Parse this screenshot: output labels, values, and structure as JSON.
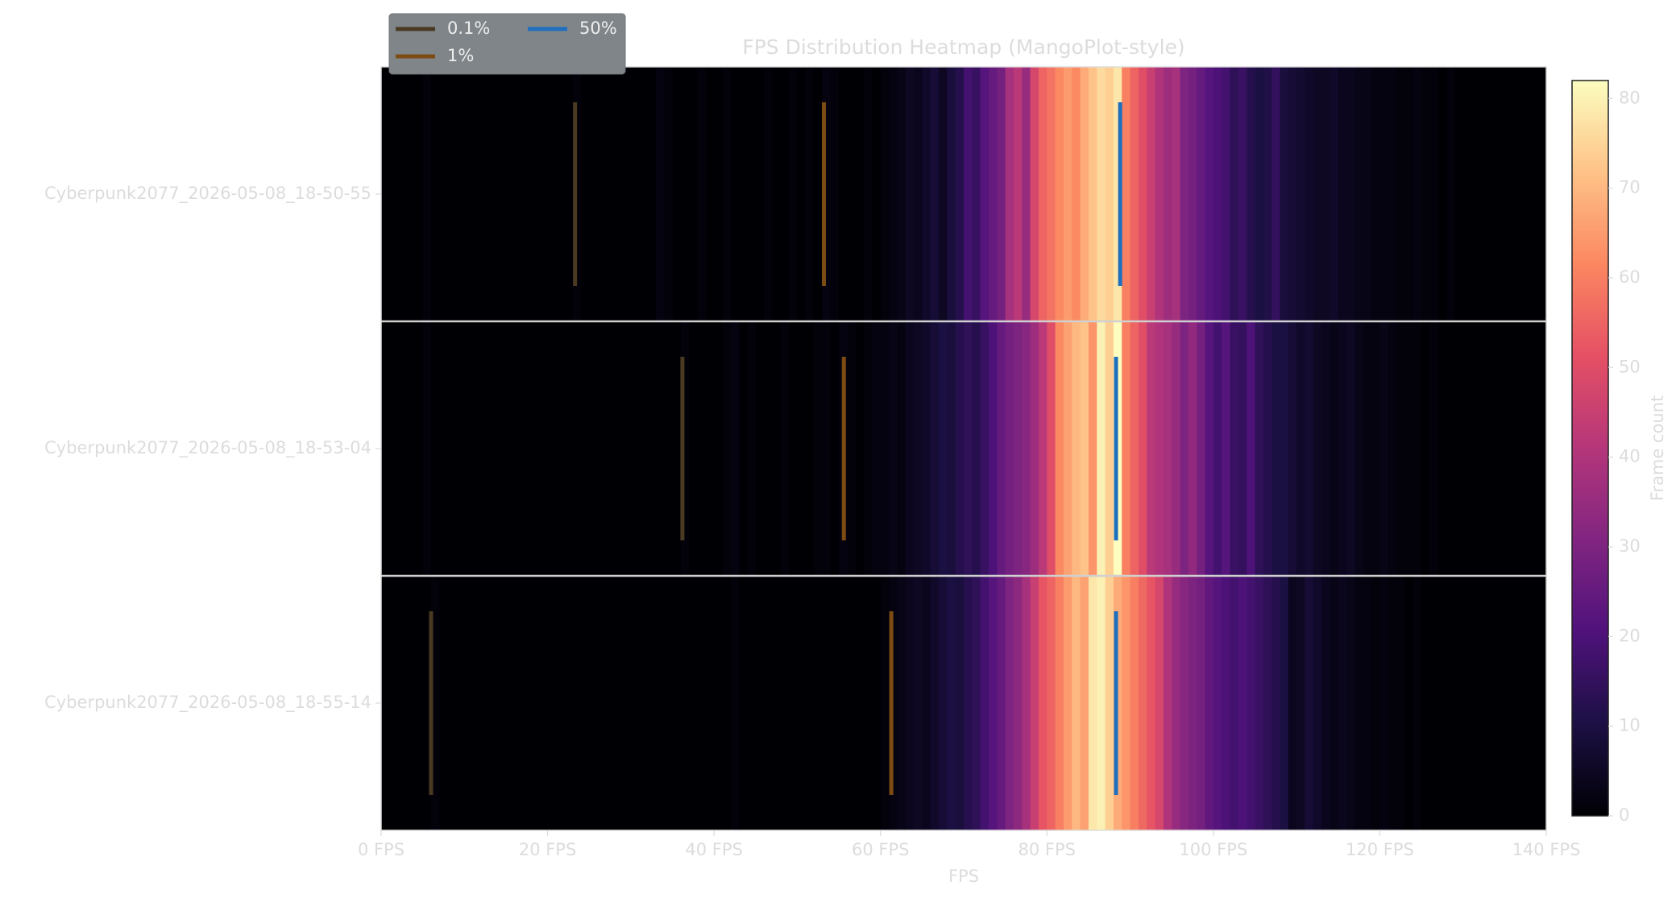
{
  "chart_data": {
    "type": "heatmap",
    "title": "FPS Distribution Heatmap (MangoPlot-style)",
    "xlabel": "FPS",
    "colormap": "magma",
    "xlim": [
      0,
      140
    ],
    "xticks": [
      {
        "value": 0,
        "label": "0 FPS"
      },
      {
        "value": 20,
        "label": "20 FPS"
      },
      {
        "value": 40,
        "label": "40 FPS"
      },
      {
        "value": 60,
        "label": "60 FPS"
      },
      {
        "value": 80,
        "label": "80 FPS"
      },
      {
        "value": 100,
        "label": "100 FPS"
      },
      {
        "value": 120,
        "label": "120 FPS"
      },
      {
        "value": 140,
        "label": "140 FPS"
      }
    ],
    "rows": [
      {
        "name": "Cyberpunk2077_2026-05-08_18-50-55",
        "values": [
          0,
          0,
          0,
          0,
          0,
          1,
          0,
          0,
          0,
          0,
          0,
          0,
          0,
          0,
          0,
          0,
          0,
          0,
          0,
          0,
          0,
          0,
          0,
          1,
          0,
          0,
          0,
          0,
          0,
          0,
          0,
          0,
          0,
          2,
          1,
          0,
          0,
          0,
          1,
          0,
          0,
          1,
          0,
          0,
          0,
          0,
          1,
          0,
          0,
          1,
          0,
          1,
          0,
          2,
          1,
          0,
          0,
          0,
          1,
          0,
          1,
          2,
          3,
          5,
          4,
          6,
          8,
          5,
          9,
          12,
          18,
          16,
          22,
          25,
          28,
          38,
          42,
          35,
          48,
          55,
          58,
          62,
          65,
          62,
          68,
          72,
          76,
          74,
          78,
          60,
          55,
          50,
          45,
          40,
          36,
          38,
          30,
          28,
          25,
          22,
          20,
          18,
          14,
          16,
          12,
          10,
          11,
          15,
          9,
          8,
          7,
          6,
          5,
          5,
          6,
          4,
          4,
          3,
          3,
          2,
          2,
          2,
          1,
          1,
          2,
          1,
          1,
          0,
          1,
          0,
          0,
          0,
          0,
          0,
          0,
          0,
          0,
          0,
          0,
          0
        ]
      },
      {
        "name": "Cyberpunk2077_2026-05-08_18-53-04",
        "values": [
          0,
          0,
          0,
          0,
          0,
          1,
          0,
          0,
          0,
          0,
          0,
          0,
          0,
          0,
          0,
          0,
          0,
          0,
          0,
          0,
          0,
          0,
          0,
          0,
          0,
          0,
          0,
          0,
          0,
          0,
          0,
          0,
          0,
          0,
          0,
          0,
          1,
          0,
          0,
          0,
          0,
          1,
          2,
          0,
          1,
          0,
          0,
          0,
          1,
          0,
          0,
          0,
          1,
          1,
          0,
          2,
          1,
          0,
          1,
          2,
          2,
          3,
          2,
          4,
          5,
          6,
          8,
          10,
          9,
          12,
          14,
          12,
          16,
          20,
          25,
          28,
          30,
          32,
          36,
          42,
          50,
          62,
          66,
          70,
          72,
          64,
          80,
          74,
          82,
          60,
          55,
          50,
          42,
          40,
          38,
          35,
          30,
          34,
          28,
          22,
          18,
          22,
          16,
          15,
          20,
          14,
          12,
          10,
          10,
          8,
          6,
          7,
          5,
          4,
          3,
          4,
          5,
          3,
          2,
          2,
          3,
          2,
          1,
          1,
          1,
          0,
          1,
          0,
          0,
          0,
          0,
          0,
          0,
          0,
          0,
          0,
          0,
          0,
          0,
          0
        ]
      },
      {
        "name": "Cyberpunk2077_2026-05-08_18-55-14",
        "values": [
          0,
          0,
          0,
          0,
          0,
          0,
          1,
          0,
          0,
          0,
          0,
          0,
          0,
          0,
          0,
          0,
          0,
          0,
          0,
          0,
          0,
          0,
          0,
          0,
          0,
          0,
          0,
          0,
          0,
          0,
          0,
          0,
          0,
          0,
          0,
          0,
          0,
          0,
          0,
          0,
          0,
          0,
          1,
          0,
          0,
          0,
          0,
          0,
          0,
          0,
          0,
          0,
          0,
          0,
          0,
          0,
          0,
          0,
          0,
          0,
          1,
          2,
          3,
          4,
          5,
          4,
          6,
          8,
          10,
          9,
          12,
          14,
          18,
          22,
          25,
          30,
          33,
          38,
          45,
          52,
          55,
          60,
          65,
          70,
          66,
          78,
          80,
          74,
          68,
          64,
          60,
          56,
          52,
          48,
          40,
          35,
          32,
          30,
          28,
          24,
          22,
          20,
          18,
          20,
          18,
          16,
          14,
          12,
          10,
          4,
          5,
          8,
          6,
          4,
          3,
          4,
          3,
          2,
          2,
          1,
          2,
          1,
          1,
          0,
          1,
          0,
          0,
          0,
          0,
          0,
          0,
          0,
          0,
          0,
          0,
          0,
          0,
          0,
          0,
          0
        ]
      }
    ],
    "markers": [
      {
        "name": "0.1%",
        "color": "#4a3a22",
        "values": [
          23.3,
          36.2,
          6.0
        ]
      },
      {
        "name": "1%",
        "color": "#7d4c12",
        "values": [
          53.2,
          55.6,
          61.3
        ]
      },
      {
        "name": "50%",
        "color": "#1f6fbf",
        "values": [
          88.8,
          88.3,
          88.3
        ]
      }
    ],
    "colorbar": {
      "label": "Frame count",
      "lim": [
        0,
        82
      ],
      "ticks": [
        0,
        10,
        20,
        30,
        40,
        50,
        60,
        70,
        80
      ]
    }
  }
}
